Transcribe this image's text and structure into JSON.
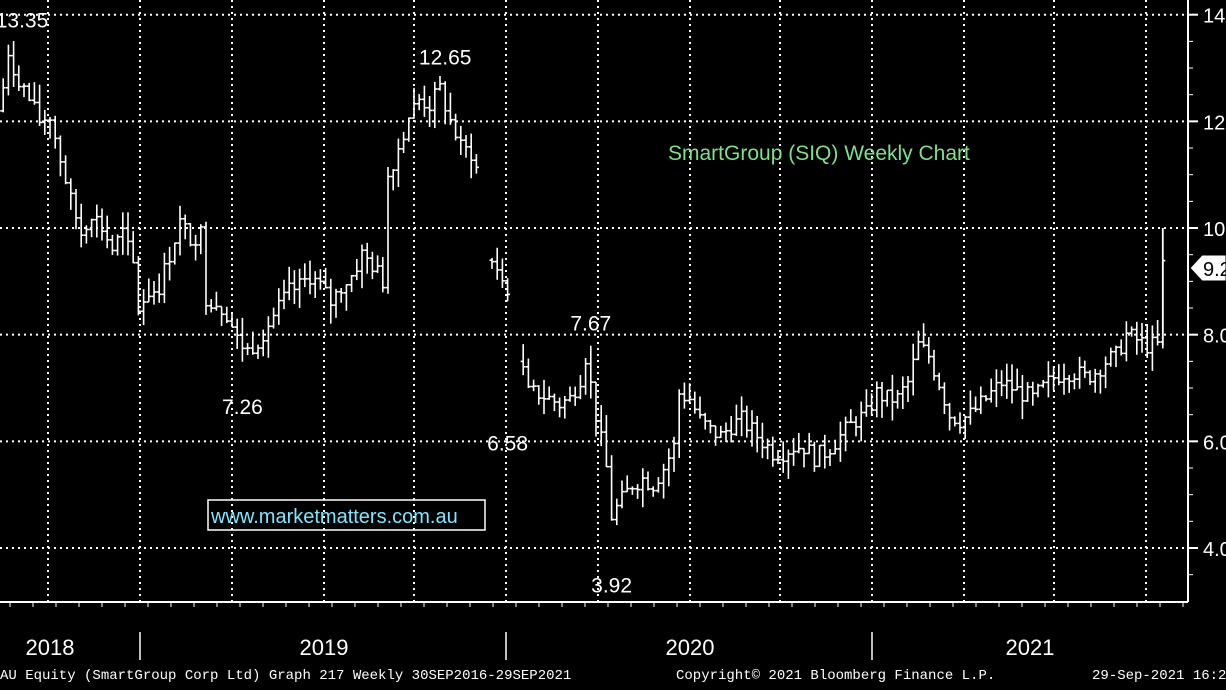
{
  "chart_data": {
    "type": "ohlc",
    "title": "SmartGroup (SIQ) Weekly Chart",
    "title_color": "#7ee08a",
    "watermark": "www.marketmatters.com.au",
    "watermark_color": "#7fe6ff",
    "background": "#000000",
    "grid_color": "#ffffff",
    "grid": true,
    "bar_color": "#ffffff",
    "y_axis_side": "right",
    "ylim": [
      3.0,
      14.5
    ],
    "y_ticks": [
      {
        "value": 14,
        "label": "14"
      },
      {
        "value": 12,
        "label": "12"
      },
      {
        "value": 10,
        "label": "10"
      },
      {
        "value": 8,
        "label": "8.0"
      },
      {
        "value": 6,
        "label": "6.0"
      },
      {
        "value": 4,
        "label": "4.0"
      }
    ],
    "last_price_label": "9.2",
    "last_price": 9.25,
    "x_labels": [
      "2018",
      "2019",
      "2020",
      "2021"
    ],
    "annotations": [
      {
        "text": "13.35",
        "week": 0,
        "value": 13.35,
        "pos": "above"
      },
      {
        "text": "12.65",
        "week": 86,
        "value": 12.65,
        "pos": "above"
      },
      {
        "text": "7.26",
        "week": 47,
        "value": 7.26,
        "pos": "below"
      },
      {
        "text": "7.67",
        "week": 114,
        "value": 7.67,
        "pos": "above"
      },
      {
        "text": "6.58",
        "week": 98,
        "value": 6.58,
        "pos": "below"
      },
      {
        "text": "3.92",
        "week": 118,
        "value": 3.92,
        "pos": "below"
      }
    ],
    "week_points": [
      [
        0,
        12.2
      ],
      [
        2,
        13.1
      ],
      [
        4,
        12.8
      ],
      [
        6,
        12.4
      ],
      [
        8,
        12.0
      ],
      [
        10,
        12.1
      ],
      [
        12,
        11.3
      ],
      [
        14,
        10.5
      ],
      [
        16,
        9.9
      ],
      [
        18,
        10.3
      ],
      [
        20,
        10.0
      ],
      [
        22,
        9.6
      ],
      [
        24,
        9.9
      ],
      [
        26,
        9.3
      ],
      [
        27,
        8.5
      ],
      [
        29,
        8.8
      ],
      [
        31,
        8.9
      ],
      [
        33,
        9.5
      ],
      [
        35,
        10.1
      ],
      [
        37,
        9.8
      ],
      [
        39,
        9.9
      ],
      [
        40,
        8.7
      ],
      [
        42,
        8.6
      ],
      [
        44,
        8.4
      ],
      [
        46,
        7.9
      ],
      [
        48,
        7.7
      ],
      [
        50,
        7.9
      ],
      [
        52,
        8.2
      ],
      [
        54,
        8.5
      ],
      [
        56,
        8.8
      ],
      [
        58,
        8.9
      ],
      [
        60,
        9.1
      ],
      [
        62,
        8.9
      ],
      [
        64,
        8.6
      ],
      [
        66,
        8.9
      ],
      [
        68,
        9.1
      ],
      [
        70,
        9.5
      ],
      [
        72,
        9.3
      ],
      [
        74,
        9.0
      ],
      [
        75,
        11.0
      ],
      [
        77,
        11.5
      ],
      [
        79,
        12.1
      ],
      [
        81,
        12.4
      ],
      [
        83,
        12.3
      ],
      [
        85,
        12.6
      ],
      [
        87,
        12.0
      ],
      [
        89,
        11.5
      ],
      [
        91,
        11.4
      ],
      [
        92,
        11.1
      ],
      [
        93,
        null
      ],
      [
        94,
        9.6
      ],
      [
        96,
        9.1
      ],
      [
        98,
        8.9
      ],
      [
        99,
        null
      ],
      [
        100,
        7.6
      ],
      [
        102,
        6.9
      ],
      [
        104,
        6.9
      ],
      [
        106,
        6.8
      ],
      [
        108,
        6.7
      ],
      [
        110,
        6.8
      ],
      [
        112,
        7.2
      ],
      [
        113,
        7.6
      ],
      [
        115,
        6.5
      ],
      [
        117,
        5.5
      ],
      [
        118,
        4.6
      ],
      [
        120,
        4.9
      ],
      [
        122,
        5.2
      ],
      [
        124,
        5.3
      ],
      [
        126,
        5.2
      ],
      [
        128,
        5.5
      ],
      [
        130,
        5.9
      ],
      [
        131,
        6.9
      ],
      [
        133,
        6.8
      ],
      [
        135,
        6.4
      ],
      [
        137,
        6.2
      ],
      [
        139,
        6.1
      ],
      [
        141,
        6.3
      ],
      [
        143,
        6.4
      ],
      [
        145,
        6.2
      ],
      [
        147,
        6.0
      ],
      [
        149,
        5.8
      ],
      [
        151,
        5.8
      ],
      [
        153,
        5.9
      ],
      [
        155,
        5.9
      ],
      [
        157,
        5.7
      ],
      [
        159,
        5.8
      ],
      [
        161,
        6.0
      ],
      [
        163,
        6.2
      ],
      [
        165,
        6.4
      ],
      [
        167,
        6.5
      ],
      [
        169,
        6.9
      ],
      [
        171,
        6.8
      ],
      [
        173,
        6.8
      ],
      [
        175,
        7.1
      ],
      [
        177,
        7.8
      ],
      [
        179,
        7.6
      ],
      [
        181,
        7.1
      ],
      [
        183,
        6.5
      ],
      [
        185,
        6.4
      ],
      [
        187,
        6.5
      ],
      [
        189,
        6.7
      ],
      [
        191,
        6.9
      ],
      [
        193,
        7.1
      ],
      [
        195,
        7.0
      ],
      [
        197,
        6.9
      ],
      [
        199,
        6.8
      ],
      [
        201,
        7.0
      ],
      [
        203,
        7.2
      ],
      [
        205,
        7.3
      ],
      [
        207,
        7.3
      ],
      [
        209,
        7.2
      ],
      [
        211,
        7.3
      ],
      [
        213,
        7.5
      ],
      [
        215,
        7.6
      ],
      [
        217,
        8.0
      ],
      [
        219,
        7.9
      ],
      [
        221,
        7.8
      ],
      [
        223,
        7.8
      ],
      [
        224,
        9.3
      ]
    ],
    "gap_weeks": [
      93,
      99
    ]
  },
  "footer": {
    "left": "AU Equity (SmartGroup Corp Ltd) Graph 217  Weekly 30SEP2016-29SEP2021",
    "center": "Copyright© 2021 Bloomberg Finance L.P.",
    "right": "29-Sep-2021 16:22"
  }
}
